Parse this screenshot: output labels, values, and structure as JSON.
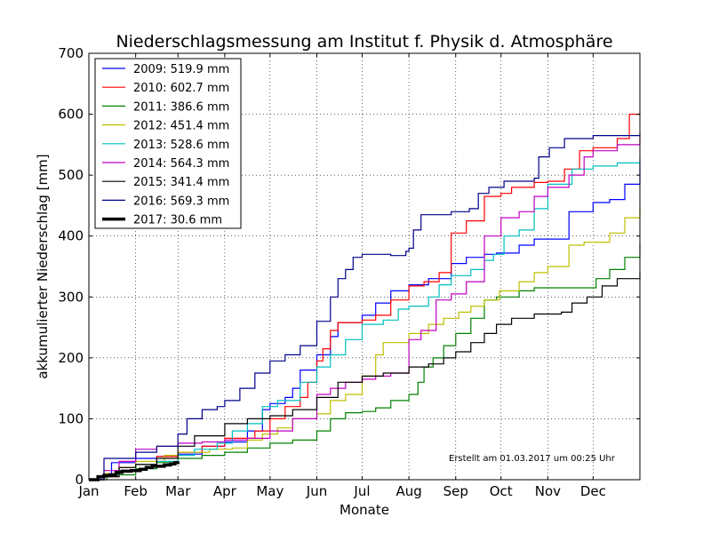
{
  "chart_data": {
    "type": "line",
    "title": "Niederschlagsmessung am Institut f. Physik d. Atmosphäre",
    "xlabel": "Monate",
    "ylabel": "akkumulierter Niederschlag [mm]",
    "xlim": [
      0,
      365
    ],
    "ylim": [
      0,
      700
    ],
    "yticks": [
      0,
      100,
      200,
      300,
      400,
      500,
      600,
      700
    ],
    "xticks": [
      {
        "label": "Jan",
        "day": 0
      },
      {
        "label": "Feb",
        "day": 31
      },
      {
        "label": "Mar",
        "day": 59
      },
      {
        "label": "Apr",
        "day": 90
      },
      {
        "label": "May",
        "day": 120
      },
      {
        "label": "Jun",
        "day": 151
      },
      {
        "label": "Jul",
        "day": 181
      },
      {
        "label": "Aug",
        "day": 212
      },
      {
        "label": "Sep",
        "day": 243
      },
      {
        "label": "Oct",
        "day": 273
      },
      {
        "label": "Nov",
        "day": 304
      },
      {
        "label": "Dec",
        "day": 334
      }
    ],
    "grid": true,
    "legend_position": "top-left",
    "annotation": "Erstellt am 01.03.2017 um 00:25 Uhr",
    "series": [
      {
        "name": "2009: 519.9 mm",
        "color": "#0000ff",
        "width": 1.2,
        "points": [
          [
            0,
            0
          ],
          [
            8,
            5
          ],
          [
            15,
            28
          ],
          [
            31,
            35
          ],
          [
            45,
            38
          ],
          [
            59,
            42
          ],
          [
            75,
            55
          ],
          [
            90,
            62
          ],
          [
            105,
            80
          ],
          [
            115,
            115
          ],
          [
            120,
            125
          ],
          [
            130,
            135
          ],
          [
            135,
            150
          ],
          [
            140,
            180
          ],
          [
            151,
            205
          ],
          [
            160,
            235
          ],
          [
            165,
            258
          ],
          [
            181,
            270
          ],
          [
            190,
            290
          ],
          [
            200,
            310
          ],
          [
            212,
            320
          ],
          [
            225,
            330
          ],
          [
            240,
            355
          ],
          [
            250,
            365
          ],
          [
            262,
            370
          ],
          [
            270,
            372
          ],
          [
            285,
            385
          ],
          [
            295,
            395
          ],
          [
            304,
            395
          ],
          [
            318,
            440
          ],
          [
            334,
            455
          ],
          [
            345,
            460
          ],
          [
            355,
            485
          ],
          [
            365,
            520
          ]
        ]
      },
      {
        "name": "2010: 602.7 mm",
        "color": "#ff0000",
        "width": 1.2,
        "points": [
          [
            0,
            0
          ],
          [
            10,
            5
          ],
          [
            20,
            20
          ],
          [
            31,
            25
          ],
          [
            45,
            38
          ],
          [
            59,
            45
          ],
          [
            75,
            55
          ],
          [
            90,
            68
          ],
          [
            110,
            80
          ],
          [
            120,
            100
          ],
          [
            130,
            120
          ],
          [
            140,
            135
          ],
          [
            145,
            160
          ],
          [
            151,
            195
          ],
          [
            155,
            215
          ],
          [
            160,
            245
          ],
          [
            165,
            258
          ],
          [
            181,
            262
          ],
          [
            190,
            270
          ],
          [
            200,
            295
          ],
          [
            212,
            318
          ],
          [
            222,
            325
          ],
          [
            232,
            340
          ],
          [
            240,
            405
          ],
          [
            250,
            425
          ],
          [
            262,
            465
          ],
          [
            273,
            470
          ],
          [
            280,
            480
          ],
          [
            295,
            488
          ],
          [
            304,
            490
          ],
          [
            315,
            510
          ],
          [
            325,
            540
          ],
          [
            334,
            545
          ],
          [
            350,
            560
          ],
          [
            358,
            600
          ],
          [
            365,
            603
          ]
        ]
      },
      {
        "name": "2011: 386.6 mm",
        "color": "#008000",
        "width": 1.2,
        "points": [
          [
            0,
            0
          ],
          [
            12,
            8
          ],
          [
            31,
            18
          ],
          [
            45,
            28
          ],
          [
            59,
            35
          ],
          [
            75,
            40
          ],
          [
            90,
            45
          ],
          [
            105,
            52
          ],
          [
            120,
            60
          ],
          [
            135,
            65
          ],
          [
            151,
            80
          ],
          [
            160,
            100
          ],
          [
            170,
            110
          ],
          [
            181,
            112
          ],
          [
            190,
            118
          ],
          [
            200,
            130
          ],
          [
            212,
            140
          ],
          [
            218,
            160
          ],
          [
            222,
            185
          ],
          [
            228,
            200
          ],
          [
            235,
            220
          ],
          [
            243,
            240
          ],
          [
            253,
            265
          ],
          [
            262,
            295
          ],
          [
            270,
            300
          ],
          [
            285,
            310
          ],
          [
            295,
            315
          ],
          [
            315,
            315
          ],
          [
            332,
            315
          ],
          [
            336,
            330
          ],
          [
            345,
            345
          ],
          [
            355,
            365
          ],
          [
            365,
            387
          ]
        ]
      },
      {
        "name": "2012: 451.4 mm",
        "color": "#bfbf00",
        "width": 1.2,
        "points": [
          [
            0,
            0
          ],
          [
            10,
            10
          ],
          [
            20,
            20
          ],
          [
            31,
            30
          ],
          [
            50,
            40
          ],
          [
            59,
            45
          ],
          [
            80,
            50
          ],
          [
            95,
            52
          ],
          [
            105,
            65
          ],
          [
            115,
            75
          ],
          [
            125,
            85
          ],
          [
            135,
            100
          ],
          [
            151,
            108
          ],
          [
            160,
            130
          ],
          [
            170,
            140
          ],
          [
            181,
            170
          ],
          [
            190,
            205
          ],
          [
            195,
            225
          ],
          [
            212,
            240
          ],
          [
            225,
            255
          ],
          [
            235,
            265
          ],
          [
            245,
            275
          ],
          [
            253,
            285
          ],
          [
            262,
            295
          ],
          [
            272,
            310
          ],
          [
            285,
            325
          ],
          [
            295,
            340
          ],
          [
            304,
            350
          ],
          [
            318,
            385
          ],
          [
            328,
            390
          ],
          [
            345,
            405
          ],
          [
            355,
            430
          ],
          [
            365,
            451
          ]
        ]
      },
      {
        "name": "2013: 528.6 mm",
        "color": "#00bfbf",
        "width": 1.2,
        "points": [
          [
            0,
            0
          ],
          [
            10,
            8
          ],
          [
            20,
            15
          ],
          [
            31,
            25
          ],
          [
            45,
            30
          ],
          [
            59,
            40
          ],
          [
            70,
            50
          ],
          [
            85,
            60
          ],
          [
            95,
            80
          ],
          [
            105,
            92
          ],
          [
            115,
            120
          ],
          [
            125,
            130
          ],
          [
            140,
            160
          ],
          [
            151,
            185
          ],
          [
            160,
            205
          ],
          [
            170,
            230
          ],
          [
            181,
            255
          ],
          [
            195,
            262
          ],
          [
            205,
            280
          ],
          [
            212,
            285
          ],
          [
            225,
            300
          ],
          [
            232,
            320
          ],
          [
            240,
            335
          ],
          [
            253,
            345
          ],
          [
            262,
            360
          ],
          [
            268,
            370
          ],
          [
            275,
            400
          ],
          [
            285,
            410
          ],
          [
            295,
            445
          ],
          [
            304,
            485
          ],
          [
            320,
            510
          ],
          [
            334,
            515
          ],
          [
            350,
            520
          ],
          [
            365,
            529
          ]
        ]
      },
      {
        "name": "2014: 564.3 mm",
        "color": "#bf00bf",
        "width": 1.2,
        "points": [
          [
            0,
            0
          ],
          [
            10,
            15
          ],
          [
            20,
            30
          ],
          [
            31,
            50
          ],
          [
            45,
            55
          ],
          [
            59,
            60
          ],
          [
            75,
            62
          ],
          [
            90,
            65
          ],
          [
            105,
            68
          ],
          [
            120,
            80
          ],
          [
            135,
            100
          ],
          [
            151,
            140
          ],
          [
            160,
            150
          ],
          [
            170,
            160
          ],
          [
            181,
            165
          ],
          [
            190,
            170
          ],
          [
            200,
            175
          ],
          [
            212,
            230
          ],
          [
            220,
            245
          ],
          [
            230,
            295
          ],
          [
            240,
            305
          ],
          [
            250,
            325
          ],
          [
            262,
            400
          ],
          [
            273,
            430
          ],
          [
            285,
            440
          ],
          [
            295,
            465
          ],
          [
            304,
            480
          ],
          [
            318,
            500
          ],
          [
            328,
            530
          ],
          [
            334,
            540
          ],
          [
            350,
            550
          ],
          [
            365,
            564
          ]
        ]
      },
      {
        "name": "2015: 341.4 mm",
        "color": "#000000",
        "width": 1.2,
        "points": [
          [
            0,
            0
          ],
          [
            10,
            5
          ],
          [
            20,
            20
          ],
          [
            31,
            25
          ],
          [
            45,
            35
          ],
          [
            59,
            55
          ],
          [
            70,
            72
          ],
          [
            90,
            92
          ],
          [
            105,
            100
          ],
          [
            120,
            105
          ],
          [
            135,
            115
          ],
          [
            151,
            135
          ],
          [
            165,
            160
          ],
          [
            181,
            170
          ],
          [
            195,
            175
          ],
          [
            212,
            185
          ],
          [
            225,
            190
          ],
          [
            235,
            200
          ],
          [
            243,
            210
          ],
          [
            253,
            225
          ],
          [
            262,
            240
          ],
          [
            270,
            255
          ],
          [
            280,
            265
          ],
          [
            295,
            272
          ],
          [
            313,
            275
          ],
          [
            320,
            290
          ],
          [
            330,
            300
          ],
          [
            340,
            318
          ],
          [
            350,
            330
          ],
          [
            365,
            341
          ]
        ]
      },
      {
        "name": "2016: 569.3 mm",
        "color": "#00008b",
        "width": 1.2,
        "points": [
          [
            0,
            0
          ],
          [
            10,
            35
          ],
          [
            31,
            45
          ],
          [
            45,
            55
          ],
          [
            59,
            75
          ],
          [
            65,
            100
          ],
          [
            75,
            115
          ],
          [
            85,
            120
          ],
          [
            90,
            130
          ],
          [
            100,
            150
          ],
          [
            110,
            175
          ],
          [
            120,
            195
          ],
          [
            130,
            205
          ],
          [
            140,
            220
          ],
          [
            151,
            260
          ],
          [
            160,
            300
          ],
          [
            165,
            330
          ],
          [
            170,
            345
          ],
          [
            175,
            365
          ],
          [
            181,
            370
          ],
          [
            200,
            368
          ],
          [
            210,
            375
          ],
          [
            212,
            380
          ],
          [
            215,
            410
          ],
          [
            220,
            435
          ],
          [
            240,
            440
          ],
          [
            252,
            445
          ],
          [
            258,
            470
          ],
          [
            265,
            480
          ],
          [
            275,
            490
          ],
          [
            295,
            495
          ],
          [
            298,
            530
          ],
          [
            305,
            545
          ],
          [
            315,
            560
          ],
          [
            334,
            565
          ],
          [
            365,
            569
          ]
        ]
      },
      {
        "name": "2017: 30.6 mm",
        "color": "#000000",
        "width": 3.5,
        "points": [
          [
            0,
            0
          ],
          [
            6,
            5
          ],
          [
            10,
            7
          ],
          [
            14,
            8
          ],
          [
            18,
            12
          ],
          [
            22,
            14
          ],
          [
            28,
            15
          ],
          [
            31,
            15
          ],
          [
            34,
            17
          ],
          [
            38,
            20
          ],
          [
            42,
            22
          ],
          [
            46,
            22
          ],
          [
            50,
            24
          ],
          [
            54,
            26
          ],
          [
            57,
            28
          ],
          [
            59,
            30
          ]
        ]
      }
    ]
  }
}
